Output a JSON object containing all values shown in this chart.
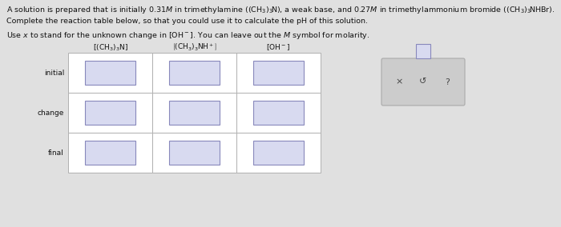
{
  "bg_color": "#e0e0e0",
  "text_color": "#111111",
  "line1": "A solution is prepared that is initially 0.31$M$ in trimethylamine $((\\mathrm{CH}_3)_3\\mathrm{N})$, a weak base, and 0.27$M$ in trimethylammonium bromide $((\\mathrm{CH}_3)_3\\mathrm{NHBr})$.",
  "line2": "Complete the reaction table below, so that you could use it to calculate the pH of this solution.",
  "line3": "Use $x$ to stand for the unknown change in $[\\mathrm{OH}^-]$. You can leave out the $M$ symbol for molarity.",
  "col_headers": [
    "$[(\\mathrm{CH}_3)_3\\mathrm{N}]$",
    "$[(\\mathrm{CH}_3)_3\\mathrm{NH}^+]$",
    "$[\\mathrm{OH}^-]$"
  ],
  "row_labels": [
    "initial",
    "change",
    "final"
  ],
  "cell_white": "#ffffff",
  "cell_border": "#b0b0b0",
  "input_fill": "#d8daf0",
  "input_border": "#8888bb",
  "panel_fill": "#cccccc",
  "panel_border": "#aaaaaa"
}
